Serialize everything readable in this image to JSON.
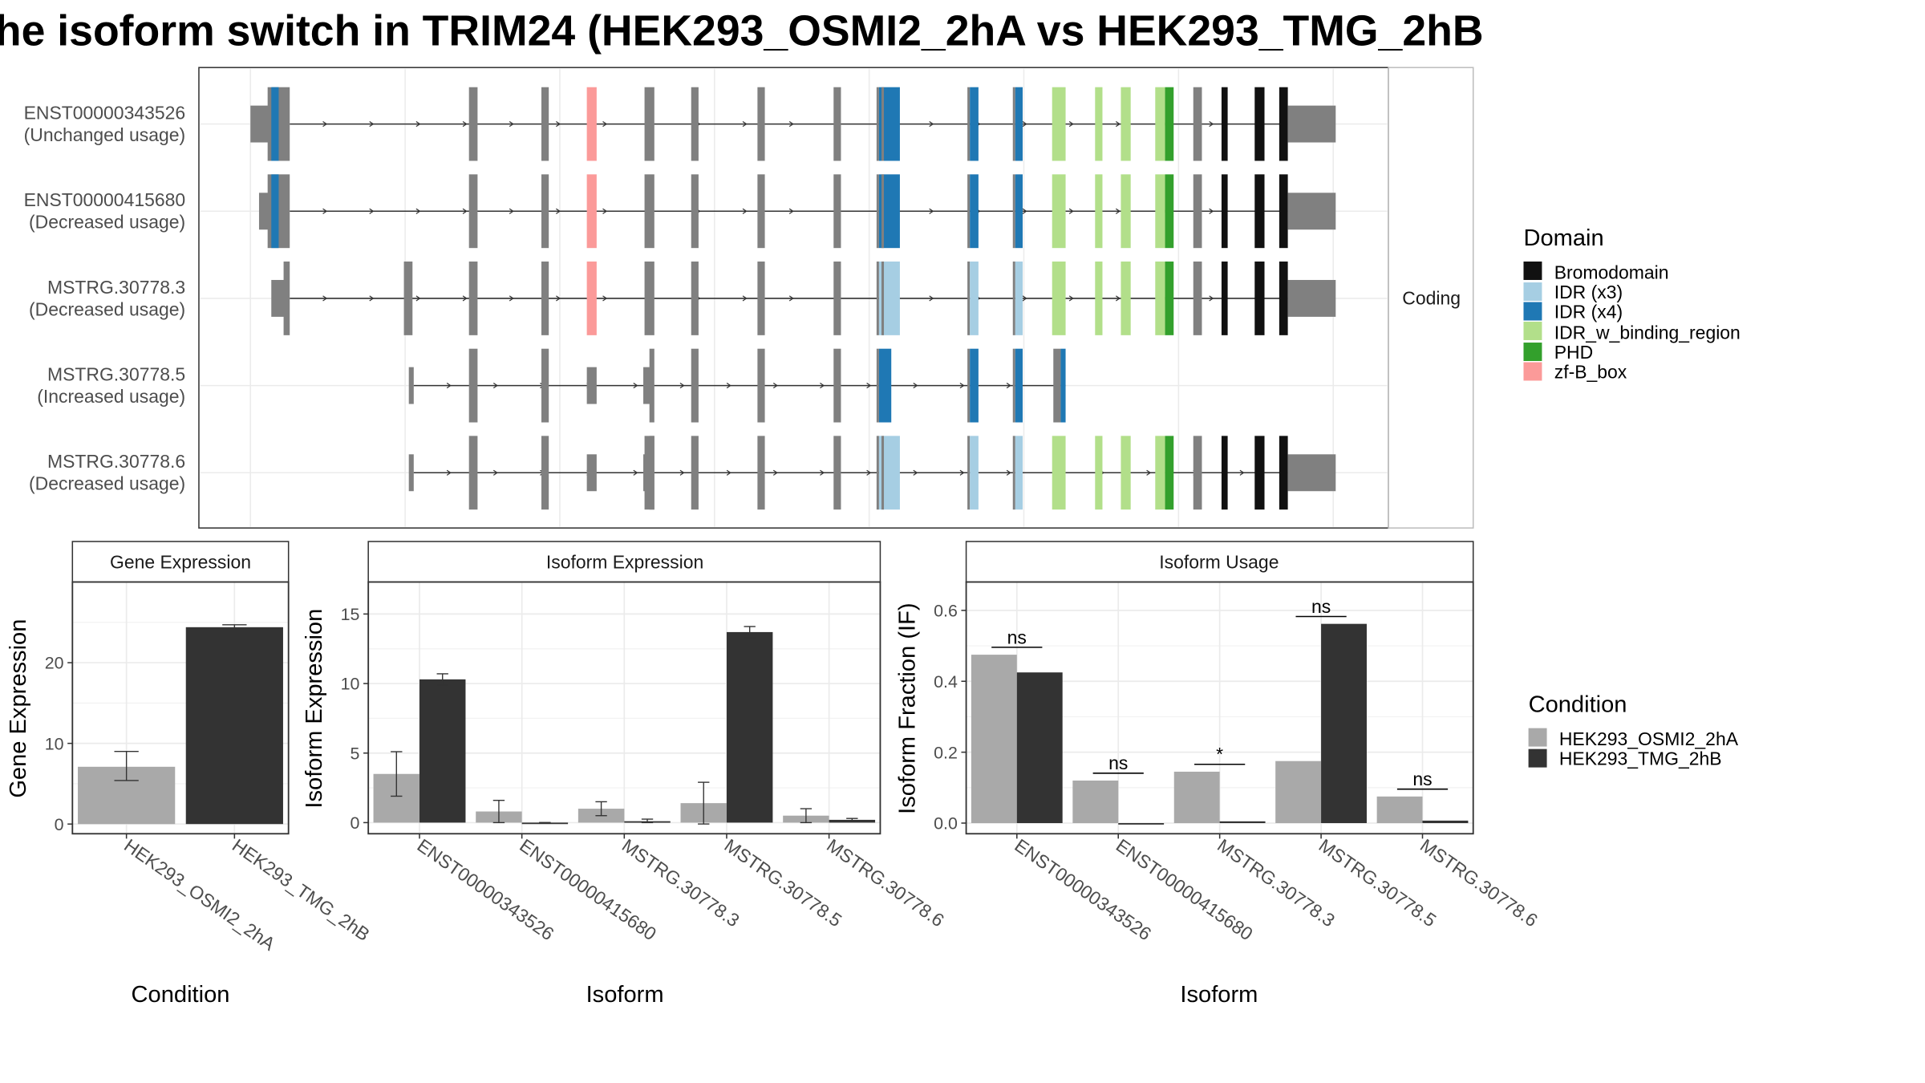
{
  "title": "he isoform switch in TRIM24 (HEK293_OSMI2_2hA vs HEK293_TMG_2hB",
  "colors": {
    "Bromodomain": "#111111",
    "IDR (x3)": "#a6cee3",
    "IDR (x4)": "#1f78b4",
    "IDR_w_binding_region": "#b2df8a",
    "PHD": "#33a02c",
    "zf-B_box": "#fb9a99",
    "exon": "#808080",
    "cond_a": "#a9a9a9",
    "cond_b": "#333333"
  },
  "structure": {
    "facet_label": "Coding",
    "transcripts": [
      {
        "id": "ENST00000343526",
        "status": "(Unchanged usage)"
      },
      {
        "id": "ENST00000415680",
        "status": "(Decreased usage)"
      },
      {
        "id": "MSTRG.30778.3",
        "status": "(Decreased usage)"
      },
      {
        "id": "MSTRG.30778.5",
        "status": "(Increased usage)"
      },
      {
        "id": "MSTRG.30778.6",
        "status": "(Decreased usage)"
      }
    ]
  },
  "legends": {
    "domain": {
      "title": "Domain",
      "items": [
        "Bromodomain",
        "IDR (x3)",
        "IDR (x4)",
        "IDR_w_binding_region",
        "PHD",
        "zf-B_box"
      ]
    },
    "condition": {
      "title": "Condition",
      "items": [
        "HEK293_OSMI2_2hA",
        "HEK293_TMG_2hB"
      ]
    }
  },
  "chart_data": [
    {
      "type": "bar",
      "title": "Gene Expression",
      "xlabel": "Condition",
      "ylabel": "Gene Expression",
      "categories": [
        "HEK293_OSMI2_2hA",
        "HEK293_TMG_2hB"
      ],
      "values": [
        7.1,
        24.4
      ],
      "errors": [
        [
          5.4,
          9.0
        ],
        [
          24.1,
          24.7
        ]
      ],
      "ylim": [
        -1.2,
        30.0
      ],
      "yticks": [
        0,
        10,
        20
      ]
    },
    {
      "type": "bar",
      "title": "Isoform Expression",
      "xlabel": "Isoform",
      "ylabel": "Isoform Expression",
      "categories": [
        "ENST00000343526",
        "ENST00000415680",
        "MSTRG.30778.3",
        "MSTRG.30778.5",
        "MSTRG.30778.6"
      ],
      "series": [
        {
          "name": "HEK293_OSMI2_2hA",
          "values": [
            3.5,
            0.8,
            1.0,
            1.4,
            0.5
          ],
          "errors": [
            [
              1.9,
              5.1
            ],
            [
              0.0,
              1.6
            ],
            [
              0.5,
              1.5
            ],
            [
              -0.1,
              2.9
            ],
            [
              0.0,
              1.0
            ]
          ]
        },
        {
          "name": "HEK293_TMG_2hB",
          "values": [
            10.3,
            0.0,
            0.1,
            13.7,
            0.2
          ],
          "errors": [
            [
              9.9,
              10.7
            ],
            [
              0.0,
              0.0
            ],
            [
              0.0,
              0.25
            ],
            [
              13.3,
              14.1
            ],
            [
              0.1,
              0.3
            ]
          ]
        }
      ],
      "ylim": [
        -0.8,
        17.3
      ],
      "yticks": [
        0,
        5,
        10,
        15
      ]
    },
    {
      "type": "bar",
      "title": "Isoform Usage",
      "xlabel": "Isoform",
      "ylabel": "Isoform Fraction (IF)",
      "categories": [
        "ENST00000343526",
        "ENST00000415680",
        "MSTRG.30778.3",
        "MSTRG.30778.5",
        "MSTRG.30778.6"
      ],
      "series": [
        {
          "name": "HEK293_OSMI2_2hA",
          "values": [
            0.475,
            0.12,
            0.145,
            0.175,
            0.075
          ]
        },
        {
          "name": "HEK293_TMG_2hB",
          "values": [
            0.425,
            0.0,
            0.005,
            0.562,
            0.007
          ]
        }
      ],
      "significance": [
        "ns",
        "ns",
        "*",
        "ns",
        "ns"
      ],
      "ylim": [
        -0.03,
        0.68
      ],
      "yticks": [
        0.0,
        0.2,
        0.4,
        0.6
      ],
      "ytick_labels": [
        "0.0",
        "0.2",
        "0.4",
        "0.6"
      ]
    }
  ]
}
